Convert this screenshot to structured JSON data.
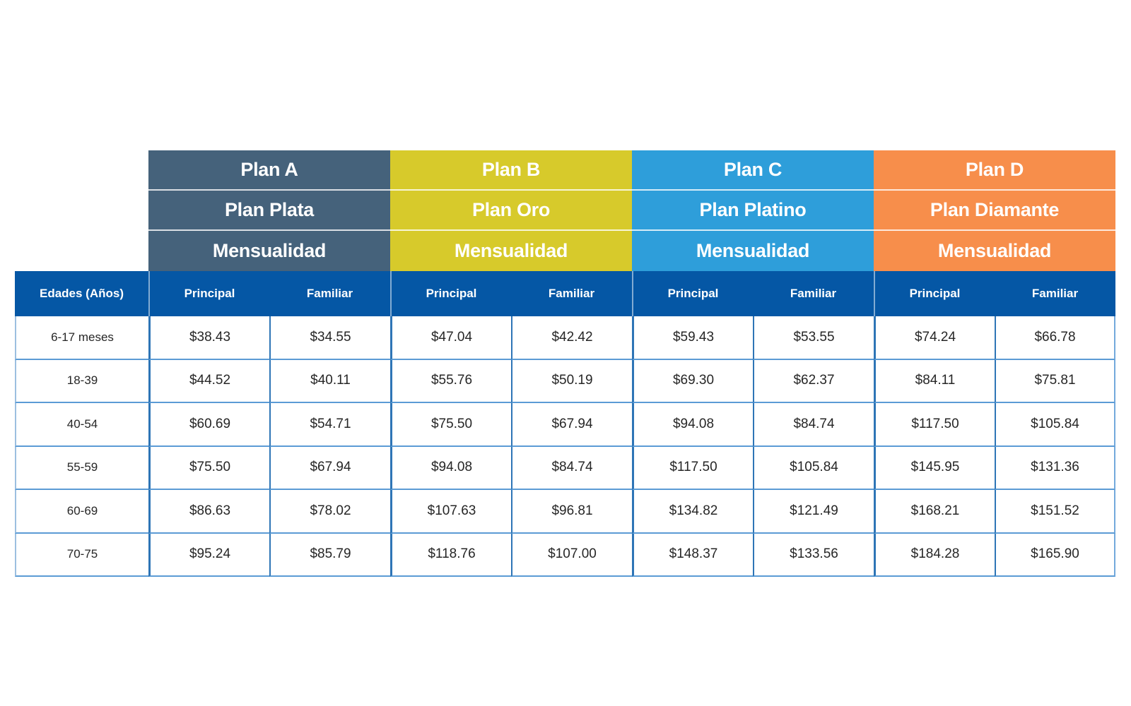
{
  "table": {
    "age_header": "Edades (Años)",
    "sub_headers": [
      "Principal",
      "Familiar"
    ],
    "plans": [
      {
        "code": "Plan A",
        "name": "Plan Plata",
        "billing": "Mensualidad",
        "color": "#45627B"
      },
      {
        "code": "Plan B",
        "name": "Plan Oro",
        "billing": "Mensualidad",
        "color": "#D7CA2B"
      },
      {
        "code": "Plan C",
        "name": "Plan Platino",
        "billing": "Mensualidad",
        "color": "#2E9EDA"
      },
      {
        "code": "Plan D",
        "name": "Plan Diamante",
        "billing": "Mensualidad",
        "color": "#F78E4B"
      }
    ],
    "rows": [
      {
        "age": "6-17 meses",
        "values": [
          "$38.43",
          "$34.55",
          "$47.04",
          "$42.42",
          "$59.43",
          "$53.55",
          "$74.24",
          "$66.78"
        ]
      },
      {
        "age": "18-39",
        "values": [
          "$44.52",
          "$40.11",
          "$55.76",
          "$50.19",
          "$69.30",
          "$62.37",
          "$84.11",
          "$75.81"
        ]
      },
      {
        "age": "40-54",
        "values": [
          "$60.69",
          "$54.71",
          "$75.50",
          "$67.94",
          "$94.08",
          "$84.74",
          "$117.50",
          "$105.84"
        ]
      },
      {
        "age": "55-59",
        "values": [
          "$75.50",
          "$67.94",
          "$94.08",
          "$84.74",
          "$117.50",
          "$105.84",
          "$145.95",
          "$131.36"
        ]
      },
      {
        "age": "60-69",
        "values": [
          "$86.63",
          "$78.02",
          "$107.63",
          "$96.81",
          "$134.82",
          "$121.49",
          "$168.21",
          "$151.52"
        ]
      },
      {
        "age": "70-75",
        "values": [
          "$95.24",
          "$85.79",
          "$118.76",
          "$107.00",
          "$148.37",
          "$133.56",
          "$184.28",
          "$165.90"
        ]
      }
    ],
    "colors": {
      "header_row": "#0557A5",
      "row_divider": "#5B9BD5",
      "column_divider": "#2E75B6",
      "outer_border": "#9CBFE0",
      "text": "#262626"
    }
  },
  "chart_data": {
    "type": "table",
    "currency": "$",
    "row_label_header": "Edades (Años)",
    "row_labels": [
      "6-17 meses",
      "18-39",
      "40-54",
      "55-59",
      "60-69",
      "70-75"
    ],
    "groups": [
      {
        "plan": "Plan A",
        "tier": "Plan Plata",
        "billing": "Mensualidad",
        "principal": [
          38.43,
          44.52,
          60.69,
          75.5,
          86.63,
          95.24
        ],
        "familiar": [
          34.55,
          40.11,
          54.71,
          67.94,
          78.02,
          85.79
        ]
      },
      {
        "plan": "Plan B",
        "tier": "Plan Oro",
        "billing": "Mensualidad",
        "principal": [
          47.04,
          55.76,
          75.5,
          94.08,
          107.63,
          118.76
        ],
        "familiar": [
          42.42,
          50.19,
          67.94,
          84.74,
          96.81,
          107.0
        ]
      },
      {
        "plan": "Plan C",
        "tier": "Plan Platino",
        "billing": "Mensualidad",
        "principal": [
          59.43,
          69.3,
          94.08,
          117.5,
          134.82,
          148.37
        ],
        "familiar": [
          53.55,
          62.37,
          84.74,
          105.84,
          121.49,
          133.56
        ]
      },
      {
        "plan": "Plan D",
        "tier": "Plan Diamante",
        "billing": "Mensualidad",
        "principal": [
          74.24,
          84.11,
          117.5,
          145.95,
          168.21,
          184.28
        ],
        "familiar": [
          66.78,
          75.81,
          105.84,
          131.36,
          151.52,
          165.9
        ]
      }
    ]
  }
}
